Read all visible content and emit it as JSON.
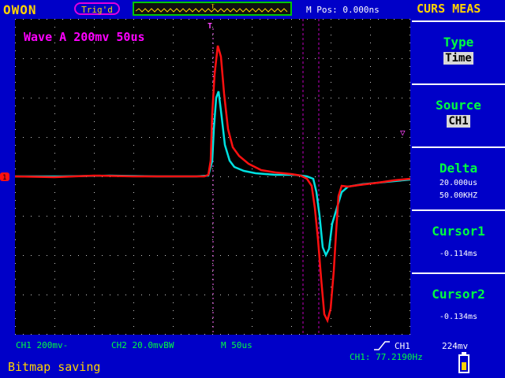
{
  "header": {
    "brand": "OWON",
    "trigger_status": "Trig'd",
    "m_pos": "M Pos: 0.000ns",
    "menu_title": "CURS MEAS"
  },
  "waveform": {
    "label": "Wave A 200mv 50us",
    "trigger_marker": "T",
    "ch1_marker": "1",
    "cursor_marker": "▽"
  },
  "menu": {
    "type": {
      "title": "Type",
      "value": "Time"
    },
    "source": {
      "title": "Source",
      "value": "CH1"
    },
    "delta": {
      "title": "Delta",
      "time": "20.000us",
      "freq": "50.00KHZ"
    },
    "cursor1": {
      "title": "Cursor1",
      "value": "-0.114ms"
    },
    "cursor2": {
      "title": "Cursor2",
      "value": "-0.134ms"
    }
  },
  "status": {
    "ch1_scale": "CH1 200mv-",
    "ch2_scale": "CH2 20.0mvBW",
    "timebase": "M  50us",
    "trigger_source": "CH1",
    "trigger_level": "224mv",
    "frequency": "CH1: 77.2190Hz",
    "message": "Bitmap saving"
  },
  "colors": {
    "background": "#0000c8",
    "screen": "#000000",
    "ch1_trace": "#ff1010",
    "ch2_trace": "#00e0e0",
    "accent_yellow": "#ffd200",
    "accent_green": "#00ff40",
    "magenta": "#ff00ff"
  }
}
